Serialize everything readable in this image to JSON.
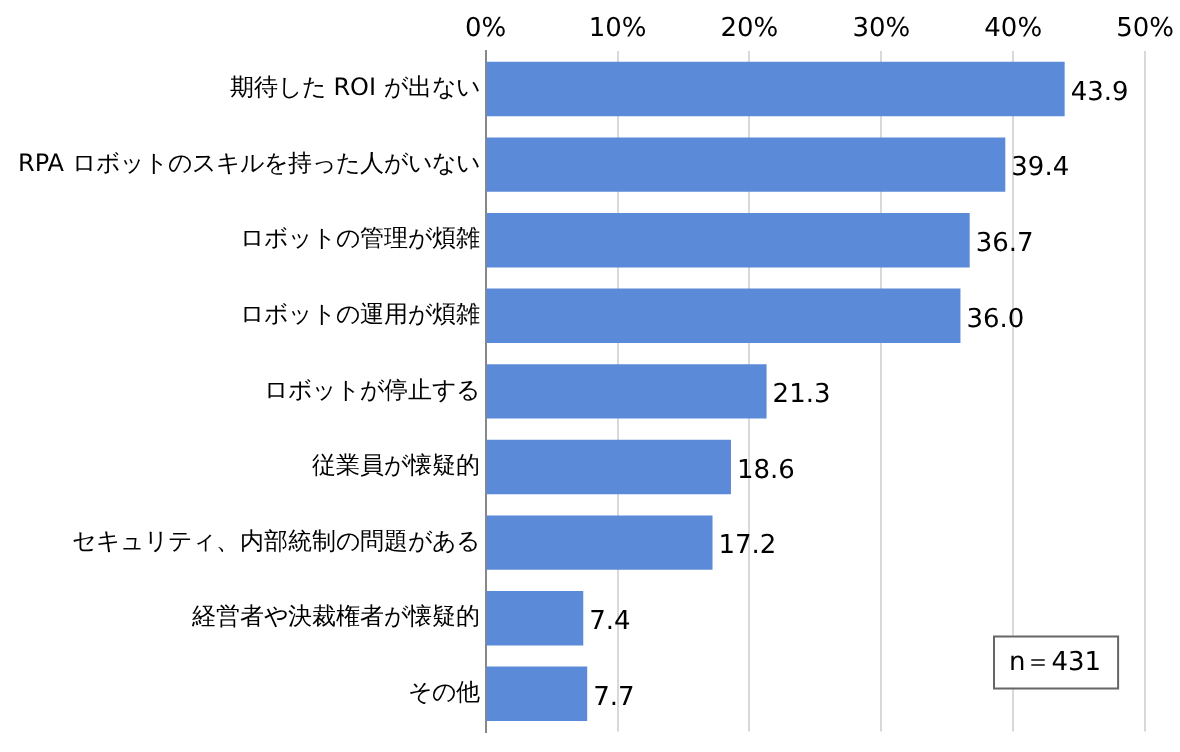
{
  "chart_data": {
    "type": "bar",
    "orientation": "horizontal",
    "categories": [
      "期待した ROI が出ない",
      "RPA ロボットのスキルを持った人がいない",
      "ロボットの管理が煩雑",
      "ロボットの運用が煩雑",
      "ロボットが停止する",
      "従業員が懐疑的",
      "セキュリティ、内部統制の問題がある",
      "経営者や決裁権者が懐疑的",
      "その他"
    ],
    "values": [
      43.9,
      39.4,
      36.7,
      36.0,
      21.3,
      18.6,
      17.2,
      7.4,
      7.7
    ],
    "value_labels": [
      "43.9",
      "39.4",
      "36.7",
      "36.0",
      "21.3",
      "18.6",
      "17.2",
      "7.4",
      "7.7"
    ],
    "color": "#5b8ad8",
    "xlim": [
      0,
      50
    ],
    "xticks": [
      {
        "value": 0,
        "label": "0%"
      },
      {
        "value": 10,
        "label": "10%"
      },
      {
        "value": 20,
        "label": "20%"
      },
      {
        "value": 30,
        "label": "30%"
      },
      {
        "value": 40,
        "label": "40%"
      },
      {
        "value": 50,
        "label": "50%"
      }
    ],
    "grid": "x",
    "legend": false,
    "annotations": [
      "n＝431"
    ]
  }
}
